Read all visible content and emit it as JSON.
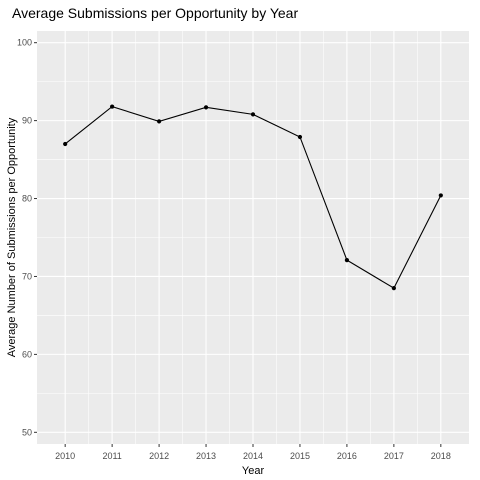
{
  "chart_data": {
    "type": "line",
    "title": "Average Submissions per Opportunity by Year",
    "xlabel": "Year",
    "ylabel": "Average Number of Submissions per Opportunity",
    "x": [
      "2010",
      "2011",
      "2012",
      "2013",
      "2014",
      "2015",
      "2016",
      "2017",
      "2018"
    ],
    "values": [
      87.0,
      91.8,
      89.9,
      91.7,
      90.8,
      87.9,
      72.1,
      68.5,
      80.4
    ],
    "ylim": [
      48.5,
      101.5
    ],
    "yticks": [
      "50",
      "60",
      "70",
      "80",
      "90",
      "100"
    ],
    "grid": true,
    "legend": "none",
    "colors": {
      "panel": "#EBEBEB",
      "grid": "#FFFFFF",
      "line": "#000000",
      "point": "#000000"
    }
  }
}
